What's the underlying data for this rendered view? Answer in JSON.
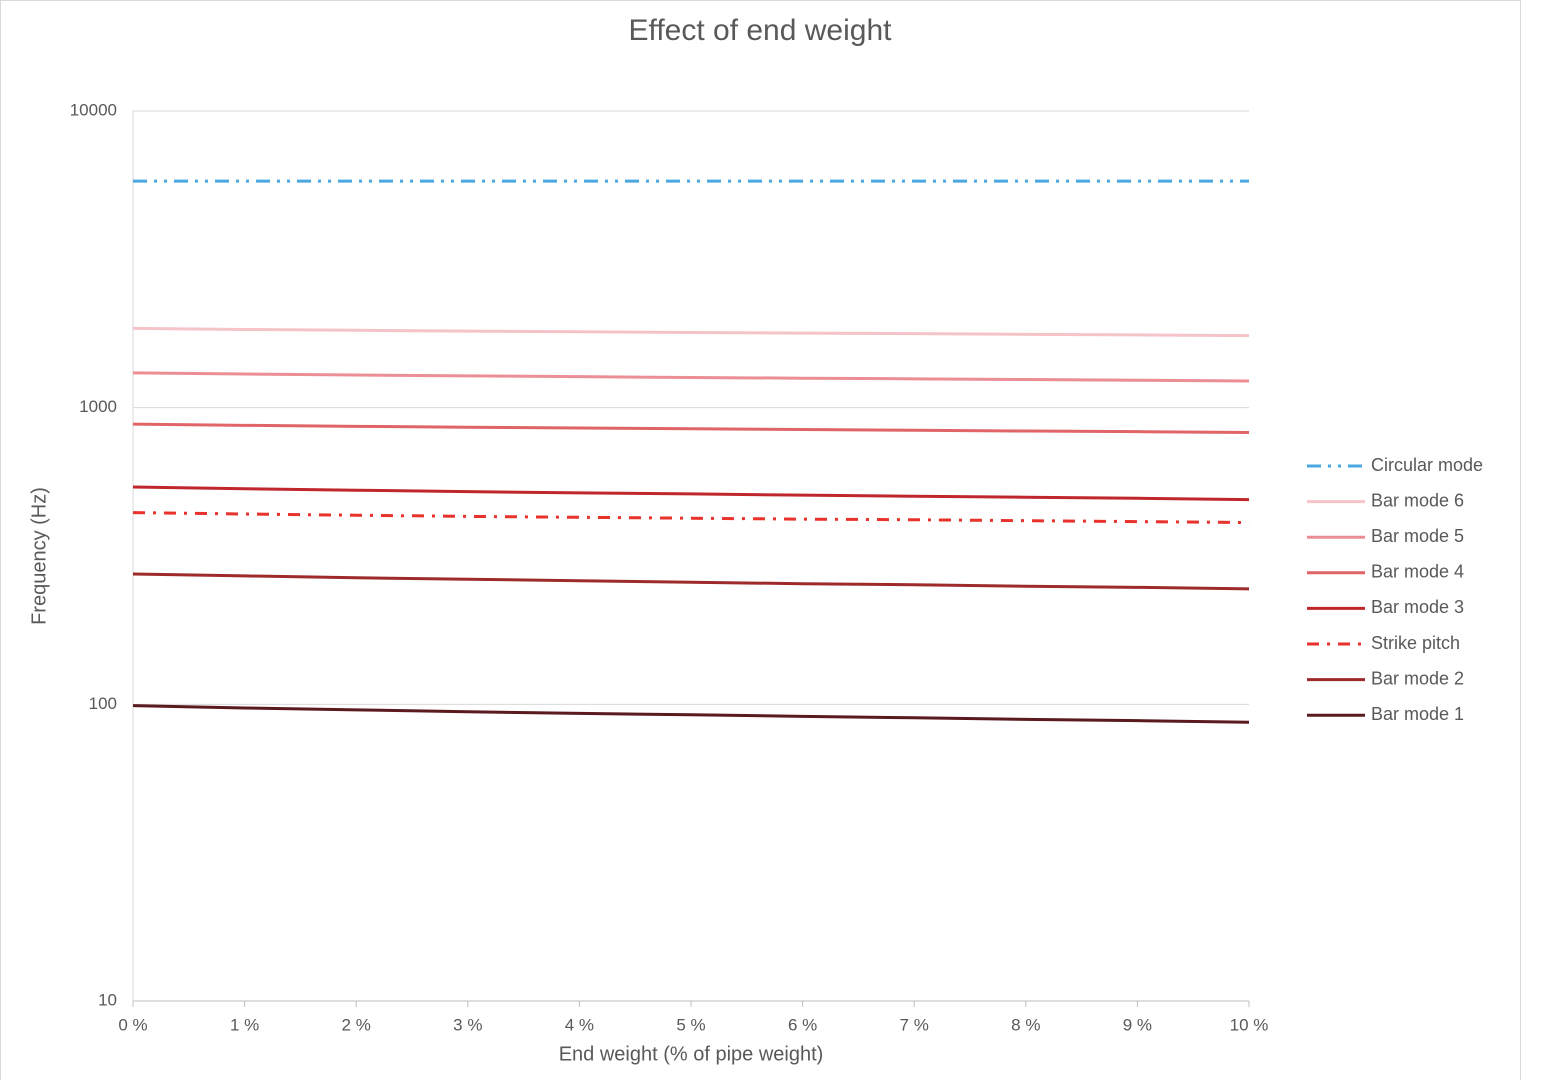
{
  "chart_data": {
    "type": "line",
    "title": "Effect of end weight",
    "x_label": "End weight (% of pipe weight)",
    "y_label": "Frequency (Hz)",
    "x": [
      0,
      1,
      2,
      3,
      4,
      5,
      6,
      7,
      8,
      9,
      10
    ],
    "xlim": [
      0,
      10
    ],
    "xticks": [
      {
        "value": 0,
        "label": "0 %"
      },
      {
        "value": 1,
        "label": "1 %"
      },
      {
        "value": 2,
        "label": "2 %"
      },
      {
        "value": 3,
        "label": "3 %"
      },
      {
        "value": 4,
        "label": "4 %"
      },
      {
        "value": 5,
        "label": "5 %"
      },
      {
        "value": 6,
        "label": "6 %"
      },
      {
        "value": 7,
        "label": "7 %"
      },
      {
        "value": 8,
        "label": "8 %"
      },
      {
        "value": 9,
        "label": "9 %"
      },
      {
        "value": 10,
        "label": "10 %"
      }
    ],
    "ylim": [
      10,
      10000
    ],
    "yticks": [
      10,
      100,
      1000,
      10000
    ],
    "y_scale": "log",
    "grid": true,
    "legend": "right",
    "series": [
      {
        "name": "Circular mode",
        "color": "#4aa8e0",
        "dash": "dash-dot-dot",
        "values": [
          5800,
          5800,
          5800,
          5800,
          5800,
          5800,
          5800,
          5800,
          5800,
          5800,
          5800
        ]
      },
      {
        "name": "Bar mode 6",
        "color": "#f4c4c8",
        "dash": "solid",
        "values": [
          1850,
          1835,
          1823,
          1812,
          1802,
          1793,
          1784,
          1776,
          1767,
          1759,
          1750
        ]
      },
      {
        "name": "Bar mode 5",
        "color": "#ec8f95",
        "dash": "solid",
        "values": [
          1310,
          1298,
          1288,
          1280,
          1272,
          1264,
          1257,
          1251,
          1244,
          1237,
          1230
        ]
      },
      {
        "name": "Bar mode 4",
        "color": "#e06468",
        "dash": "solid",
        "values": [
          880,
          872,
          865,
          859,
          854,
          849,
          844,
          839,
          834,
          830,
          825
        ]
      },
      {
        "name": "Bar mode 3",
        "color": "#c0272d",
        "dash": "solid",
        "values": [
          540,
          533,
          527,
          521,
          516,
          512,
          507,
          503,
          499,
          495,
          490
        ]
      },
      {
        "name": "Strike pitch",
        "color": "#e8322b",
        "dash": "dash-dot",
        "values": [
          443,
          438,
          434,
          430,
          427,
          424,
          421,
          419,
          416,
          413,
          410
        ]
      },
      {
        "name": "Bar mode 2",
        "color": "#9e2a2b",
        "dash": "solid",
        "values": [
          275,
          271,
          267,
          264,
          261,
          258,
          255,
          253,
          250,
          248,
          245
        ]
      },
      {
        "name": "Bar mode 1",
        "color": "#5a1a1e",
        "dash": "solid",
        "values": [
          99,
          97.2,
          95.8,
          94.4,
          93.2,
          92.2,
          91.1,
          90.1,
          89,
          88.1,
          87
        ]
      }
    ]
  }
}
